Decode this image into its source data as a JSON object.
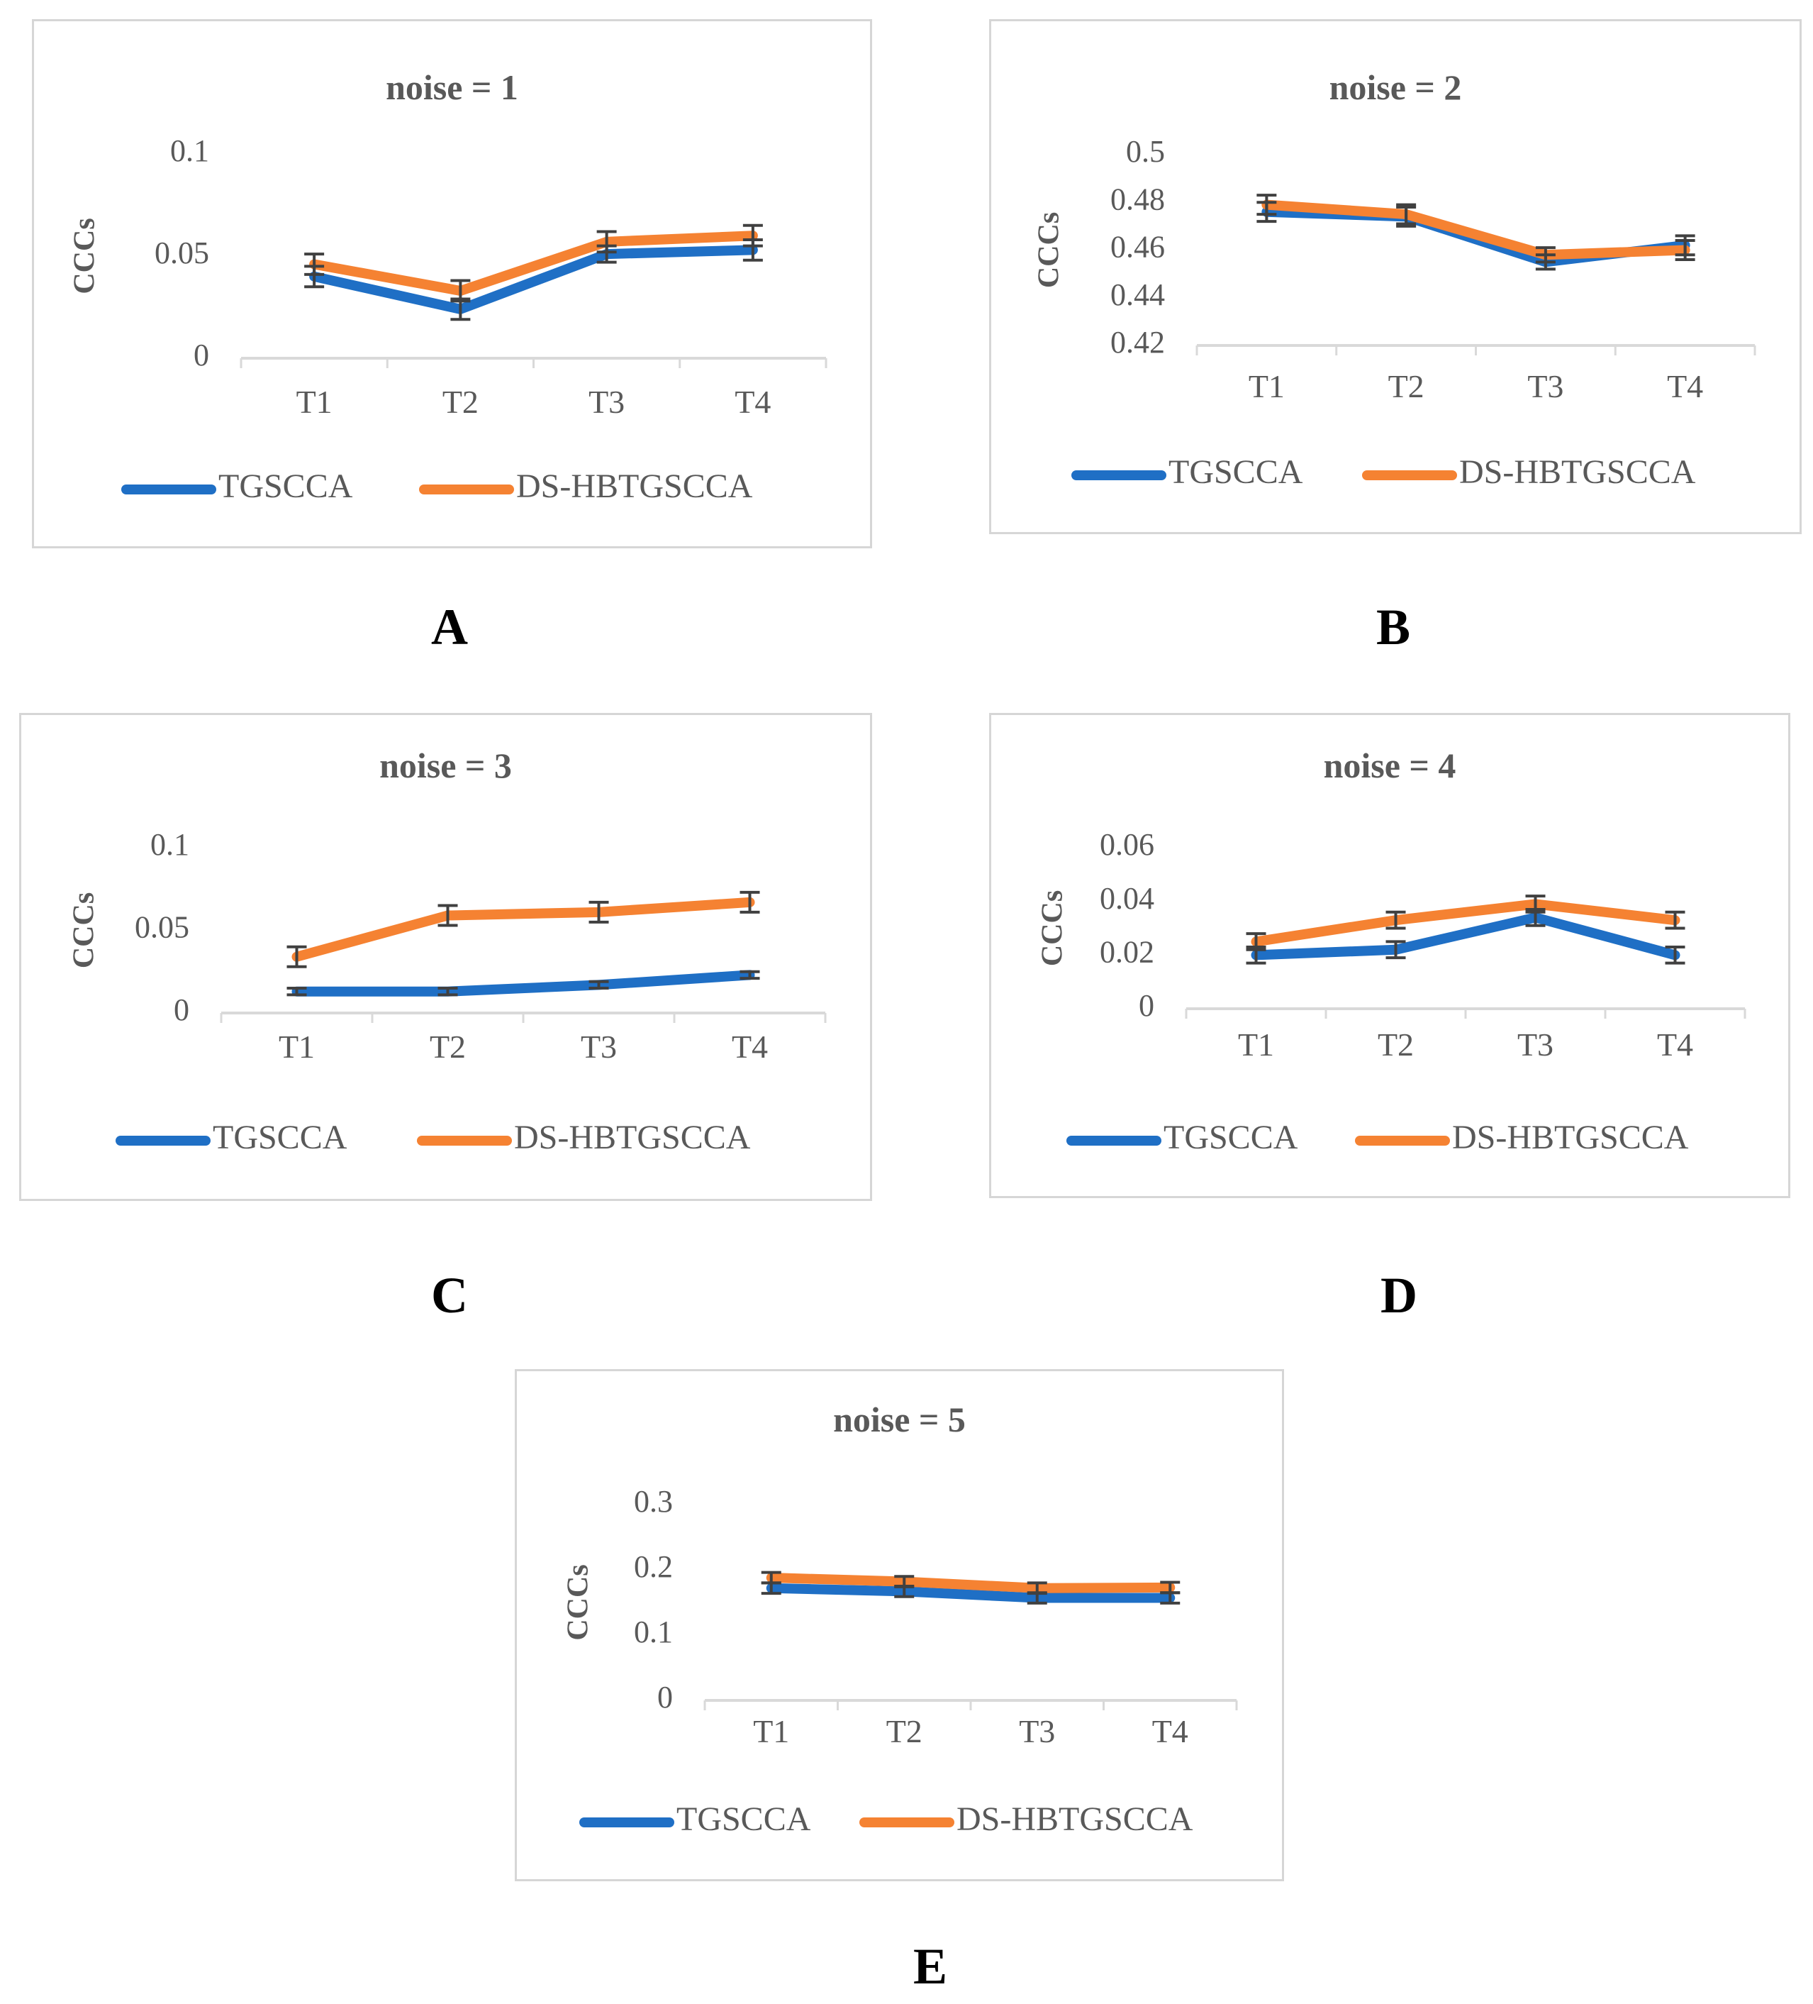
{
  "colors": {
    "tgscca": "#1f6fc5",
    "ds_hbtgscca": "#f58232",
    "axis": "#d9d9d9",
    "error_bar": "#404040",
    "title": "#595959",
    "tick": "#595959"
  },
  "panel_letters": [
    "A",
    "B",
    "C",
    "D",
    "E"
  ],
  "chart_data": [
    {
      "type": "line",
      "title": "noise = 1",
      "ylabel": "CCCs",
      "xlabel": "",
      "categories": [
        "T1",
        "T2",
        "T3",
        "T4"
      ],
      "ylim": [
        0,
        0.1
      ],
      "yticks": [
        0,
        0.05,
        0.1
      ],
      "ytick_labels": [
        "0",
        "0.05",
        "0.1"
      ],
      "grid": false,
      "legend": "bottom",
      "series": [
        {
          "name": "TGSCCA",
          "values": [
            0.04,
            0.024,
            0.051,
            0.053
          ],
          "error": [
            0.005,
            0.005,
            0.004,
            0.005
          ]
        },
        {
          "name": "DS-HBTGSCCA",
          "values": [
            0.046,
            0.033,
            0.057,
            0.06
          ],
          "error": [
            0.005,
            0.005,
            0.005,
            0.005
          ]
        }
      ]
    },
    {
      "type": "line",
      "title": "noise = 2",
      "ylabel": "CCCs",
      "xlabel": "",
      "categories": [
        "T1",
        "T2",
        "T3",
        "T4"
      ],
      "ylim": [
        0.42,
        0.5
      ],
      "yticks": [
        0.42,
        0.44,
        0.46,
        0.48,
        0.5
      ],
      "ytick_labels": [
        "0.42",
        "0.44",
        "0.46",
        "0.48",
        "0.5"
      ],
      "grid": false,
      "legend": "bottom",
      "series": [
        {
          "name": "TGSCCA",
          "values": [
            0.476,
            0.474,
            0.455,
            0.462
          ],
          "error": [
            0.004,
            0.004,
            0.003,
            0.004
          ]
        },
        {
          "name": "DS-HBTGSCCA",
          "values": [
            0.479,
            0.475,
            0.458,
            0.46
          ],
          "error": [
            0.004,
            0.004,
            0.003,
            0.004
          ]
        }
      ]
    },
    {
      "type": "line",
      "title": "noise = 3",
      "ylabel": "CCCs",
      "xlabel": "",
      "categories": [
        "T1",
        "T2",
        "T3",
        "T4"
      ],
      "ylim": [
        0,
        0.1
      ],
      "yticks": [
        0,
        0.05,
        0.1
      ],
      "ytick_labels": [
        "0",
        "0.05",
        "0.1"
      ],
      "grid": false,
      "legend": "bottom",
      "series": [
        {
          "name": "TGSCCA",
          "values": [
            0.013,
            0.013,
            0.017,
            0.023
          ],
          "error": [
            0.002,
            0.002,
            0.002,
            0.002
          ]
        },
        {
          "name": "DS-HBTGSCCA",
          "values": [
            0.034,
            0.059,
            0.061,
            0.067
          ],
          "error": [
            0.006,
            0.006,
            0.006,
            0.006
          ]
        }
      ]
    },
    {
      "type": "line",
      "title": "noise = 4",
      "ylabel": "CCCs",
      "xlabel": "",
      "categories": [
        "T1",
        "T2",
        "T3",
        "T4"
      ],
      "ylim": [
        0,
        0.06
      ],
      "yticks": [
        0,
        0.02,
        0.04,
        0.06
      ],
      "ytick_labels": [
        "0",
        "0.02",
        "0.04",
        "0.06"
      ],
      "grid": false,
      "legend": "bottom",
      "series": [
        {
          "name": "TGSCCA",
          "values": [
            0.02,
            0.022,
            0.034,
            0.02
          ],
          "error": [
            0.003,
            0.003,
            0.003,
            0.003
          ]
        },
        {
          "name": "DS-HBTGSCCA",
          "values": [
            0.025,
            0.033,
            0.039,
            0.033
          ],
          "error": [
            0.003,
            0.003,
            0.003,
            0.003
          ]
        }
      ]
    },
    {
      "type": "line",
      "title": "noise = 5",
      "ylabel": "CCCs",
      "xlabel": "",
      "categories": [
        "T1",
        "T2",
        "T3",
        "T4"
      ],
      "ylim": [
        0,
        0.3
      ],
      "yticks": [
        0,
        0.1,
        0.2,
        0.3
      ],
      "ytick_labels": [
        "0",
        "0.1",
        "0.2",
        "0.3"
      ],
      "grid": false,
      "legend": "bottom",
      "series": [
        {
          "name": "TGSCCA",
          "values": [
            0.172,
            0.167,
            0.157,
            0.157
          ],
          "error": [
            0.008,
            0.008,
            0.008,
            0.008
          ]
        },
        {
          "name": "DS-HBTGSCCA",
          "values": [
            0.188,
            0.182,
            0.172,
            0.173
          ],
          "error": [
            0.008,
            0.008,
            0.008,
            0.008
          ]
        }
      ]
    }
  ]
}
